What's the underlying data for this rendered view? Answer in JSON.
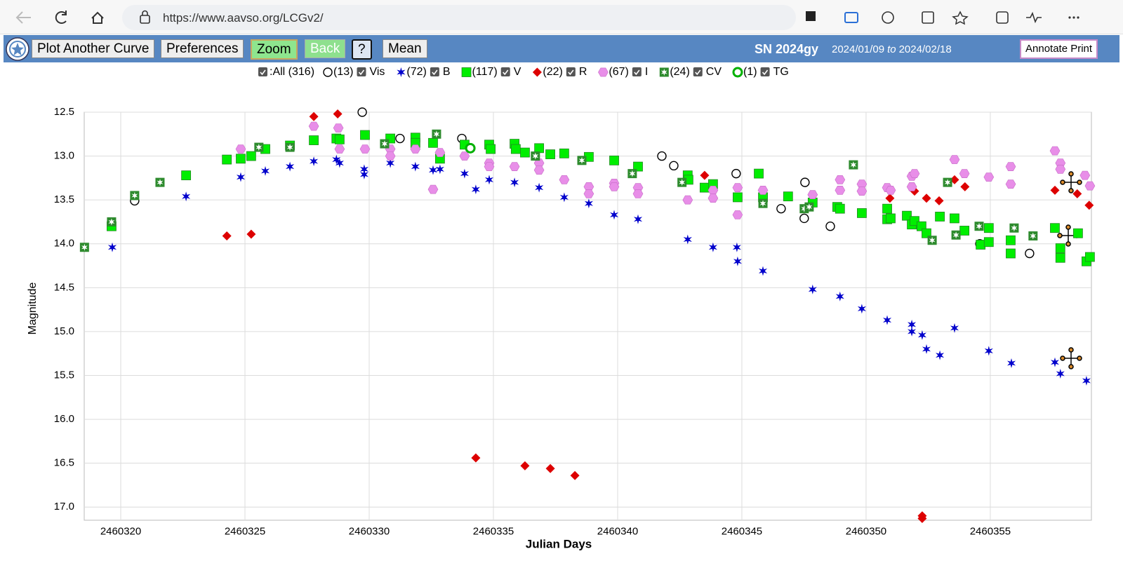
{
  "browser": {
    "url": "https://www.aavso.org/LCGv2/"
  },
  "toolbar": {
    "buttons": [
      "Plot Another Curve",
      "Preferences",
      "Zoom",
      "Back",
      "?",
      "Mean"
    ],
    "object": "SN 2024gy",
    "date_from": "2024/01/09",
    "date_sep": "to",
    "date_to": "2024/02/18",
    "annotate": "Annotate Print"
  },
  "legend": {
    "all_label": ":All (316)"
  },
  "chart_data": {
    "type": "scatter",
    "y_label": "Magnitude",
    "x_label": "Julian Days",
    "xlim": [
      2460318.53,
      2460359.07
    ],
    "ylim": [
      12.5,
      17.15
    ],
    "y_inverted": true,
    "grid": true,
    "xticks": [
      2460320,
      2460325,
      2460330,
      2460335,
      2460340,
      2460345,
      2460350,
      2460355
    ],
    "yticks": [
      12.5,
      {
        "value": 13,
        "label": "13.0"
      },
      13.5,
      {
        "value": 14,
        "label": "14.0"
      },
      14.5,
      {
        "value": 15,
        "label": "15.0"
      },
      15.5,
      {
        "value": 16,
        "label": "16.0"
      },
      16.5,
      {
        "value": 17,
        "label": "17.0"
      }
    ],
    "series": [
      {
        "name": "Vis",
        "count_label": "(13)",
        "color": "#000000",
        "marker": "circle-open",
        "x": [
          2460320.56,
          2460329.72,
          2460331.24,
          2460333.73,
          2460341.78,
          2460342.26,
          2460344.77,
          2460346.58,
          2460347.51,
          2460347.54,
          2460348.56,
          2460354.58,
          2460356.58
        ],
        "values": [
          13.51,
          12.5,
          12.8,
          12.8,
          13.0,
          13.11,
          13.2,
          13.6,
          13.71,
          13.3,
          13.8,
          14.0,
          14.11
        ]
      },
      {
        "name": "B",
        "count_label": "(72)",
        "color": "#0000cc",
        "marker": "star",
        "x": [
          2460319.66,
          2460322.63,
          2460324.83,
          2460325.82,
          2460326.81,
          2460327.77,
          2460328.68,
          2460328.81,
          2460329.8,
          2460329.8,
          2460330.85,
          2460331.86,
          2460332.57,
          2460332.85,
          2460333.84,
          2460334.29,
          2460334.83,
          2460335.85,
          2460336.84,
          2460337.85,
          2460338.84,
          2460339.86,
          2460340.82,
          2460342.82,
          2460343.84,
          2460344.8,
          2460344.83,
          2460345.85,
          2460347.85,
          2460348.95,
          2460349.83,
          2460350.85,
          2460351.84,
          2460351.84,
          2460352.26,
          2460352.43,
          2460352.97,
          2460353.56,
          2460354.94,
          2460355.85,
          2460357.6,
          2460357.82,
          2460358.87
        ],
        "values": [
          14.04,
          13.46,
          13.24,
          13.17,
          13.12,
          13.06,
          13.04,
          13.08,
          13.15,
          13.21,
          13.08,
          13.12,
          13.16,
          13.15,
          13.2,
          13.38,
          13.27,
          13.3,
          13.36,
          13.47,
          13.54,
          13.67,
          13.72,
          13.95,
          14.04,
          14.04,
          14.2,
          14.31,
          14.52,
          14.6,
          14.74,
          14.87,
          14.92,
          15.0,
          15.04,
          15.2,
          15.27,
          14.96,
          15.22,
          15.36,
          15.35,
          15.48,
          15.56
        ]
      },
      {
        "name": "V",
        "count_label": "(117)",
        "color": "#00ee00",
        "marker": "square",
        "x": [
          2460319.63,
          2460322.63,
          2460324.27,
          2460324.83,
          2460325.25,
          2460325.82,
          2460326.81,
          2460327.77,
          2460328.68,
          2460328.81,
          2460329.83,
          2460330.85,
          2460331.86,
          2460331.86,
          2460332.57,
          2460332.85,
          2460333.84,
          2460334.83,
          2460334.89,
          2460335.85,
          2460335.9,
          2460336.27,
          2460336.84,
          2460337.29,
          2460337.85,
          2460338.84,
          2460339.86,
          2460340.82,
          2460342.82,
          2460342.85,
          2460343.5,
          2460343.84,
          2460344.83,
          2460345.68,
          2460345.85,
          2460346.86,
          2460347.85,
          2460348.84,
          2460348.95,
          2460349.83,
          2460350.85,
          2460350.85,
          2460350.99,
          2460351.64,
          2460351.84,
          2460351.95,
          2460352.23,
          2460352.43,
          2460352.97,
          2460353.56,
          2460353.96,
          2460354.61,
          2460354.94,
          2460354.94,
          2460355.82,
          2460355.82,
          2460357.6,
          2460357.82,
          2460357.82,
          2460358.53,
          2460358.87,
          2460359.01
        ],
        "values": [
          13.8,
          13.22,
          13.04,
          13.03,
          13.0,
          12.92,
          12.88,
          12.82,
          12.8,
          12.81,
          12.76,
          12.8,
          12.79,
          12.85,
          12.85,
          13.03,
          12.87,
          12.87,
          12.92,
          12.86,
          12.92,
          12.96,
          12.91,
          12.98,
          12.97,
          13.01,
          13.05,
          13.12,
          13.22,
          13.27,
          13.36,
          13.32,
          13.47,
          13.2,
          13.47,
          13.46,
          13.53,
          13.58,
          13.6,
          13.65,
          13.6,
          13.72,
          13.71,
          13.68,
          13.78,
          13.74,
          13.8,
          13.88,
          13.69,
          13.71,
          13.85,
          14.01,
          13.98,
          13.82,
          13.96,
          14.11,
          13.82,
          14.05,
          14.16,
          13.88,
          14.2,
          14.15
        ]
      },
      {
        "name": "R",
        "count_label": "(22)",
        "color": "#dd0000",
        "marker": "diamond",
        "x": [
          2460324.27,
          2460325.25,
          2460327.77,
          2460328.73,
          2460334.29,
          2460336.27,
          2460337.29,
          2460338.28,
          2460343.5,
          2460350.96,
          2460351.95,
          2460352.43,
          2460352.26,
          2460352.26,
          2460352.94,
          2460353.56,
          2460353.98,
          2460357.6,
          2460358.5,
          2460358.98
        ],
        "values": [
          13.91,
          13.89,
          12.55,
          12.52,
          16.44,
          16.53,
          16.56,
          16.64,
          13.22,
          13.48,
          13.4,
          13.48,
          17.1,
          17.13,
          13.51,
          13.27,
          13.35,
          13.39,
          13.43,
          13.56
        ]
      },
      {
        "name": "I",
        "count_label": "(67)",
        "color": "#e88ee8",
        "marker": "hexagon",
        "x": [
          2460324.83,
          2460327.77,
          2460328.76,
          2460328.81,
          2460329.83,
          2460330.85,
          2460330.85,
          2460331.86,
          2460332.57,
          2460332.85,
          2460333.84,
          2460334.83,
          2460334.83,
          2460335.85,
          2460336.84,
          2460336.84,
          2460337.85,
          2460338.84,
          2460338.84,
          2460339.86,
          2460339.86,
          2460340.82,
          2460340.82,
          2460342.82,
          2460343.84,
          2460343.84,
          2460344.83,
          2460344.83,
          2460345.85,
          2460347.85,
          2460348.95,
          2460348.95,
          2460349.83,
          2460349.83,
          2460350.85,
          2460350.99,
          2460351.84,
          2460351.95,
          2460351.84,
          2460353.56,
          2460353.96,
          2460354.94,
          2460355.82,
          2460355.82,
          2460357.6,
          2460357.82,
          2460357.82,
          2460358.81,
          2460359.01
        ],
        "values": [
          12.92,
          12.66,
          12.68,
          12.92,
          12.92,
          12.92,
          13.0,
          12.92,
          13.38,
          12.96,
          13.0,
          13.08,
          13.12,
          13.12,
          13.08,
          13.16,
          13.27,
          13.35,
          13.43,
          13.31,
          13.35,
          13.36,
          13.43,
          13.5,
          13.39,
          13.48,
          13.36,
          13.67,
          13.39,
          13.44,
          13.27,
          13.39,
          13.32,
          13.4,
          13.36,
          13.39,
          13.23,
          13.2,
          13.35,
          13.04,
          13.2,
          13.24,
          13.12,
          13.32,
          12.94,
          13.08,
          13.15,
          13.22,
          13.34
        ]
      },
      {
        "name": "CV",
        "count_label": "(24)",
        "color": "#2e8b2e",
        "marker": "square-star",
        "x": [
          2460318.54,
          2460319.63,
          2460320.56,
          2460321.58,
          2460325.56,
          2460326.81,
          2460330.62,
          2460332.71,
          2460336.69,
          2460338.56,
          2460340.59,
          2460342.59,
          2460345.85,
          2460347.51,
          2460347.71,
          2460349.49,
          2460352.66,
          2460353.28,
          2460353.62,
          2460354.55,
          2460355.96,
          2460356.72
        ],
        "values": [
          14.04,
          13.75,
          13.45,
          13.3,
          12.9,
          12.9,
          12.86,
          12.75,
          13.0,
          13.05,
          13.2,
          13.3,
          13.54,
          13.6,
          13.58,
          13.1,
          13.96,
          13.3,
          13.9,
          13.8,
          13.82,
          13.91
        ]
      },
      {
        "name": "TG",
        "count_label": "(1)",
        "color": "#00b000",
        "marker": "circle-thick",
        "x": [
          2460334.07
        ],
        "values": [
          12.91
        ]
      }
    ]
  }
}
